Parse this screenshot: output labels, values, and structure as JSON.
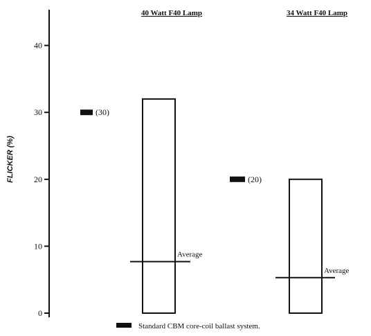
{
  "chart_data": {
    "type": "bar",
    "title": "",
    "ylabel": "FLICKER (%)",
    "xlabel": "",
    "ylim": [
      0,
      45
    ],
    "yticks": [
      0,
      10,
      20,
      30,
      40
    ],
    "grid": false,
    "legend_position": "bottom",
    "legend_label": "Standard CBM core-coil ballast system.",
    "groups": [
      {
        "label": "40 Watt F40 Lamp",
        "range": [
          0,
          32
        ],
        "average": 7.7,
        "average_label": "Average",
        "standard_value": 30,
        "standard_label": "(30)"
      },
      {
        "label": "34 Watt F40 Lamp",
        "range": [
          0,
          20
        ],
        "average": 5.3,
        "average_label": "Average",
        "standard_value": 20,
        "standard_label": "(20)"
      }
    ]
  },
  "colors": {
    "ink": "#111111",
    "background": "#ffffff"
  }
}
